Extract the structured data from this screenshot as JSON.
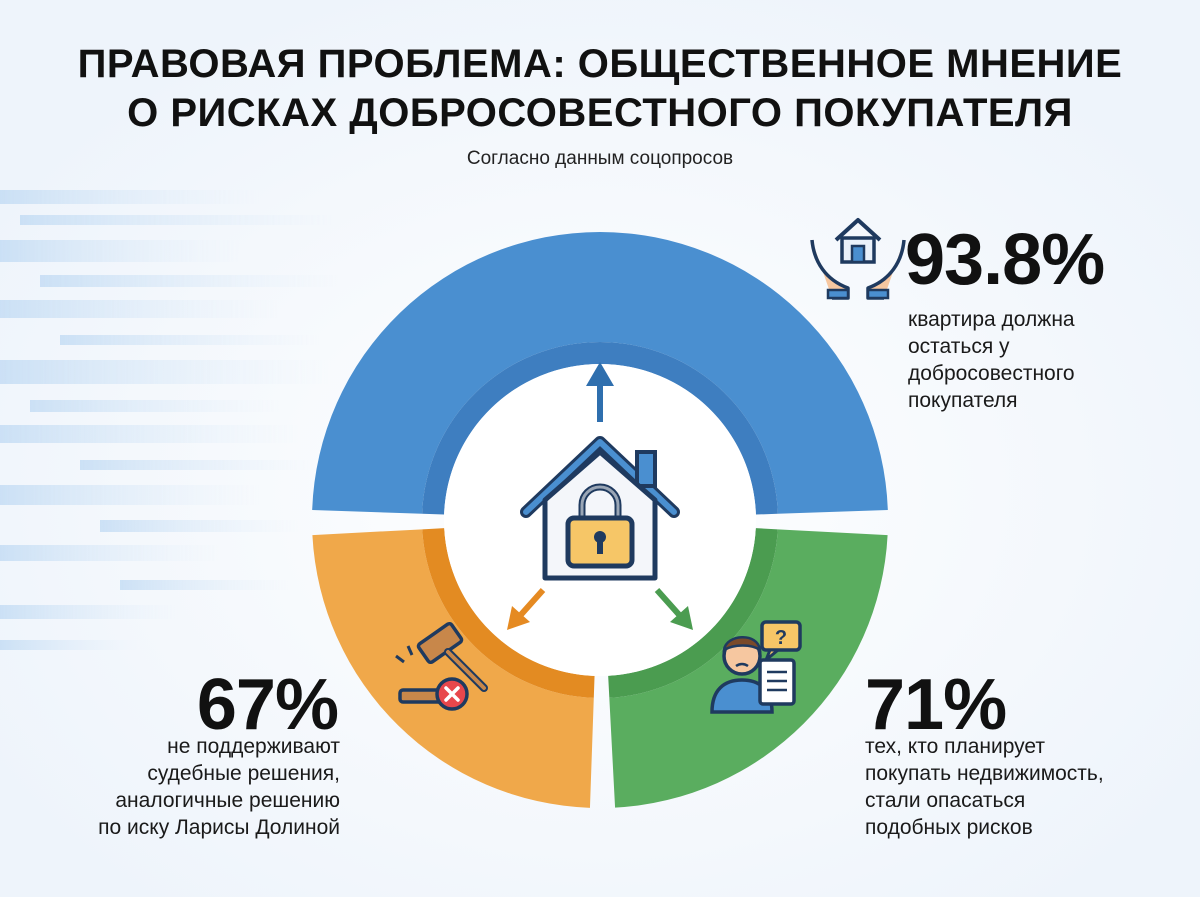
{
  "title_line1": "ПРАВОВАЯ ПРОБЛЕМА: ОБЩЕСТВЕННОЕ МНЕНИЕ",
  "title_line2": "О РИСКАХ ДОБРОСОВЕСТНОГО ПОКУПАТЕЛЯ",
  "subtitle": "Согласно данным соцопросов",
  "colors": {
    "blue": "#4a8fd0",
    "blue_inner": "#3e7ec0",
    "green": "#5aad5f",
    "green_inner": "#4b9c50",
    "orange": "#f0a84a",
    "orange_inner": "#e38b22",
    "icon_navy": "#1f3a5f",
    "lock_yellow": "#f6c667"
  },
  "chart_data": {
    "type": "pie",
    "donut": true,
    "slices": [
      {
        "value_label": "93.8%",
        "value": 93.8,
        "label": "квартира должна остаться у добросовестного покупателя",
        "label_lines": [
          "квартира должна",
          "остаться у",
          "добросовестного",
          "покупателя"
        ],
        "color": "#4a8fd0",
        "icon": "house-in-hands-icon"
      },
      {
        "value_label": "67%",
        "value": 67,
        "label": "не поддерживают судебные решения, аналогичные решению по иску Ларисы Долиной",
        "label_lines": [
          "не поддерживают",
          "судебные решения,",
          "аналогичные решению",
          "по иску Ларисы Долиной"
        ],
        "color": "#f0a84a",
        "icon": "gavel-cancel-icon"
      },
      {
        "value_label": "71%",
        "value": 71,
        "label": "тех, кто планирует покупать недвижимость, стали опасаться подобных рисков",
        "label_lines": [
          "тех, кто планирует",
          "покупать недвижимость,",
          "стали опасаться",
          "подобных рисков"
        ],
        "color": "#5aad5f",
        "icon": "worried-person-document-icon"
      }
    ],
    "center_icon": "locked-house-icon"
  }
}
